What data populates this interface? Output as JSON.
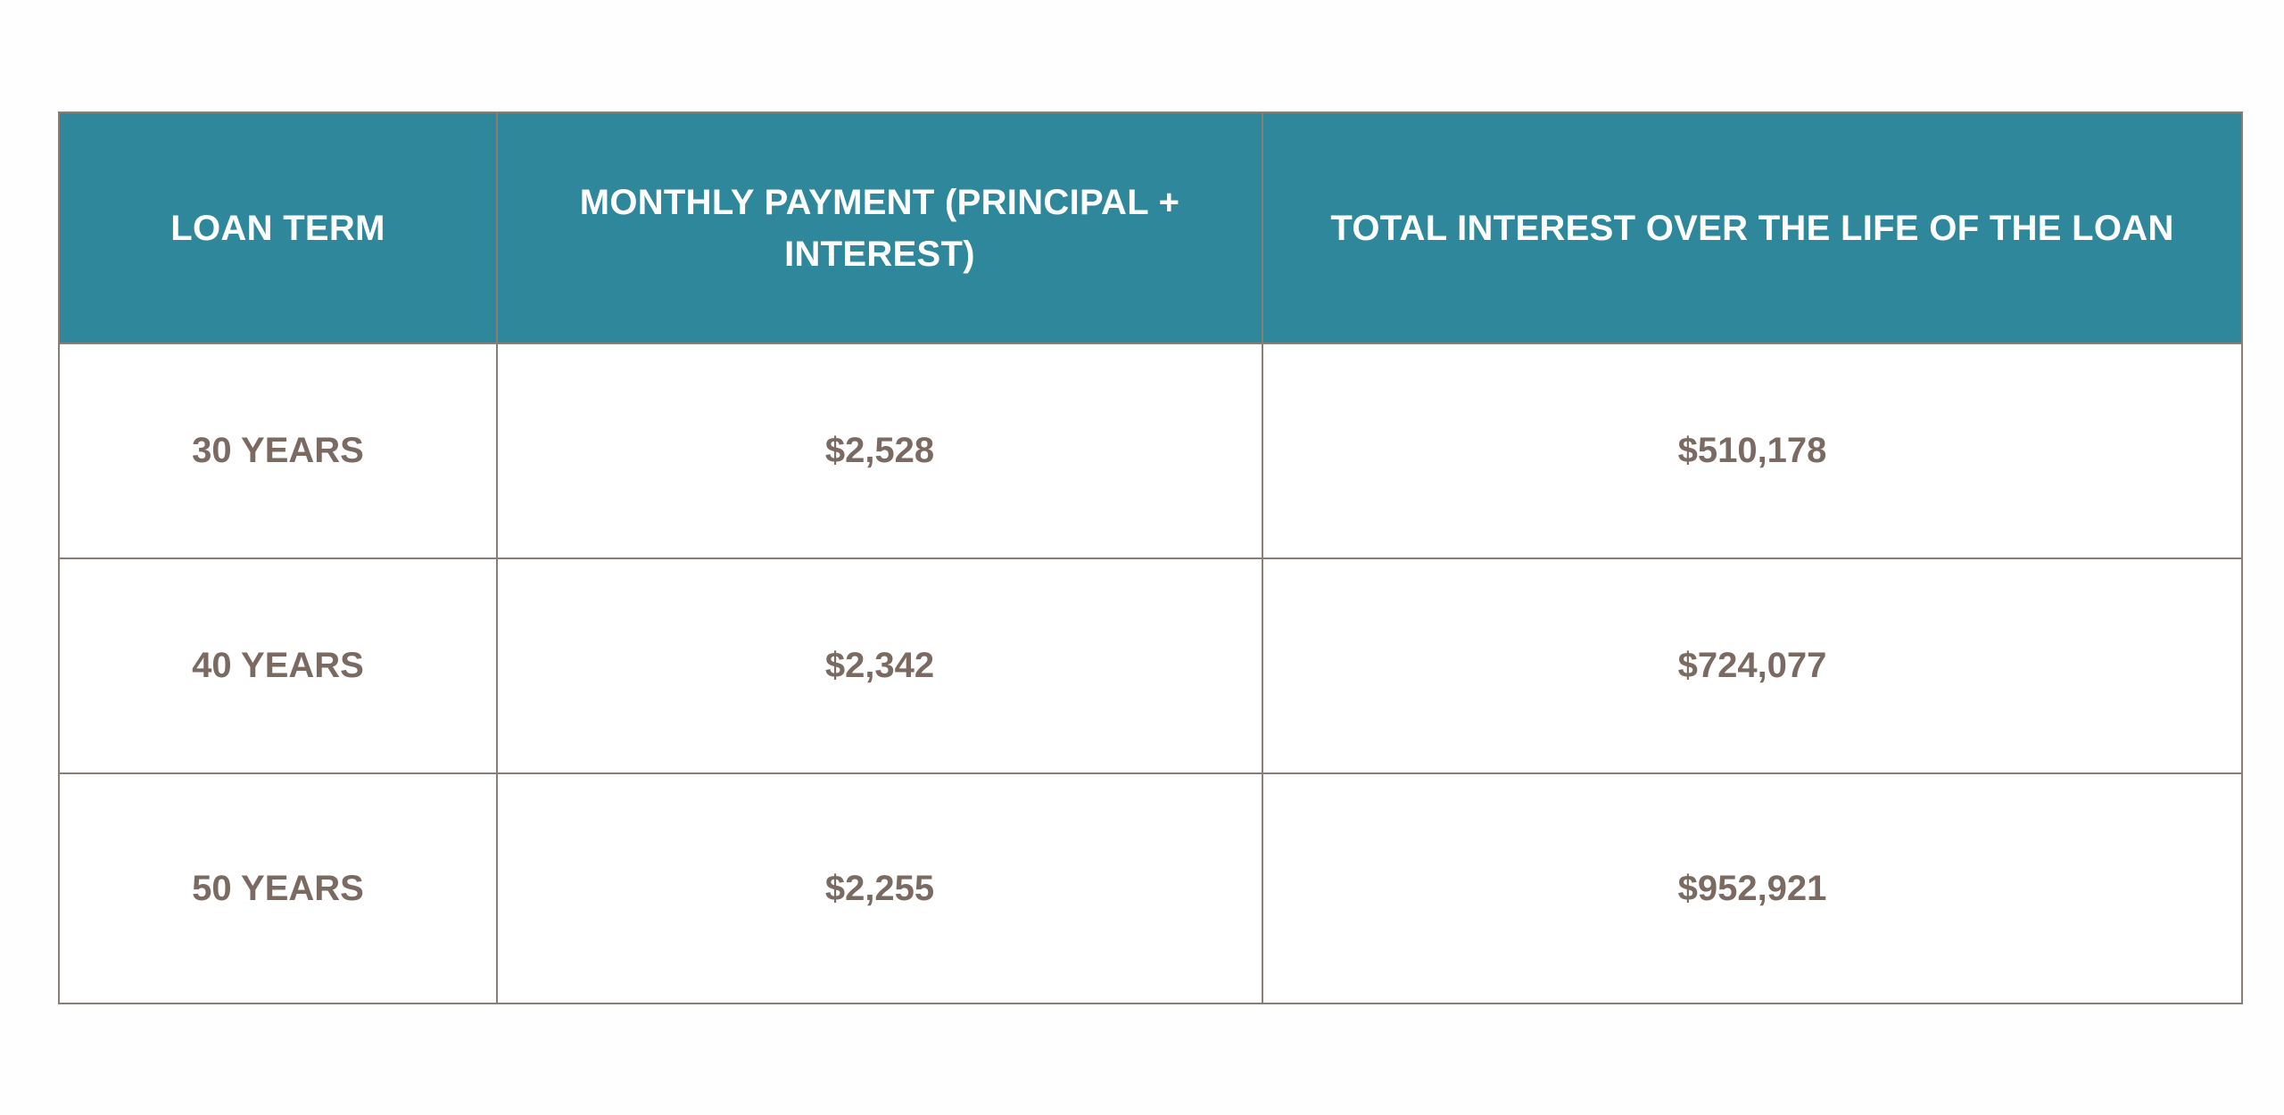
{
  "colors": {
    "header_background": "#2e879a",
    "header_text": "#ffffff",
    "cell_text": "#7a6a62",
    "border": "#8a7d77"
  },
  "chart_data": {
    "type": "table",
    "columns": [
      "LOAN TERM",
      "MONTHLY PAYMENT (PRINCIPAL  + INTEREST)",
      "TOTAL INTEREST OVER THE LIFE OF THE LOAN"
    ],
    "rows": [
      [
        "30 YEARS",
        "$2,528",
        "$510,178"
      ],
      [
        "40 YEARS",
        "$2,342",
        "$724,077"
      ],
      [
        "50 YEARS",
        "$2,255",
        "$952,921"
      ]
    ]
  }
}
